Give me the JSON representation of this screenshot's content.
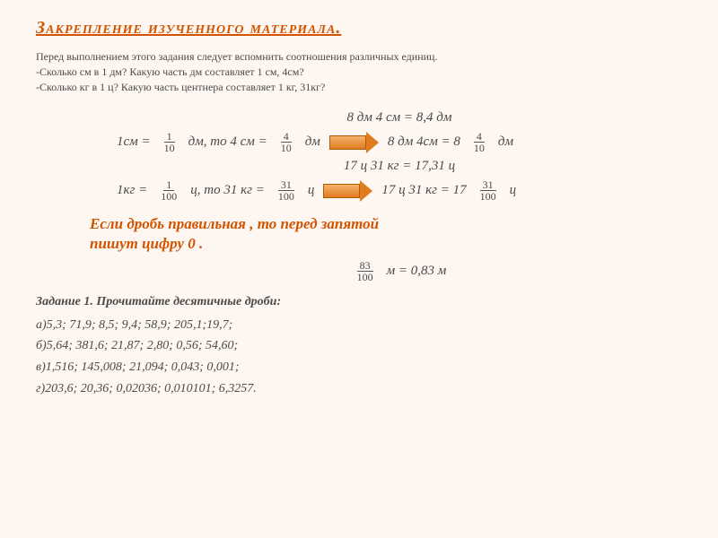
{
  "title": "Закрепление изученного материала.",
  "intro": {
    "l1": "Перед выполнением этого задания следует вспомнить соотношения различных единиц.",
    "l2": "-Сколько см в 1 дм? Какую часть дм составляет 1 см, 4см?",
    "l3": "-Сколько кг в 1 ц? Какую часть центнера составляет 1 кг, 31кг?"
  },
  "eq1": "8 дм 4 см = 8,4 дм",
  "line1": {
    "a": "1см =",
    "f1n": "1",
    "f1d": "10",
    "b": "дм, то 4 см =",
    "f2n": "4",
    "f2d": "10",
    "c": "дм",
    "d": "8 дм 4см = 8",
    "f3n": "4",
    "f3d": "10",
    "e": "дм"
  },
  "eq2": "17 ц 31 кг = 17,31 ц",
  "line2": {
    "a": "1кг =",
    "f1n": "1",
    "f1d": "100",
    "b": "ц, то 31 кг =",
    "f2n": "31",
    "f2d": "100",
    "c": "ц",
    "d": "17 ц 31 кг = 17",
    "f3n": "31",
    "f3d": "100",
    "e": "ц"
  },
  "rule1": "Если дробь правильная , то перед запятой",
  "rule2": "пишут цифру 0 .",
  "eq3": {
    "n": "83",
    "d": "100",
    "txt": " м = 0,83 м"
  },
  "task_title": "Задание 1. Прочитайте десятичные дроби:",
  "tasks": {
    "a": "а)5,3; 71,9; 8,5; 9,4; 58,9; 205,1;19,7;",
    "b": "б)5,64; 381,6; 21,87; 2,80; 0,56; 54,60;",
    "c": "в)1,516; 145,008; 21,094; 0,043; 0,001;",
    "d": "г)203,6; 20,36; 0,02036; 0,010101; 6,3257."
  },
  "colors": {
    "bg": "#fef6f0",
    "accent": "#d35400",
    "text": "#4a4a4a",
    "arrow_fill": "#e07b1f"
  }
}
